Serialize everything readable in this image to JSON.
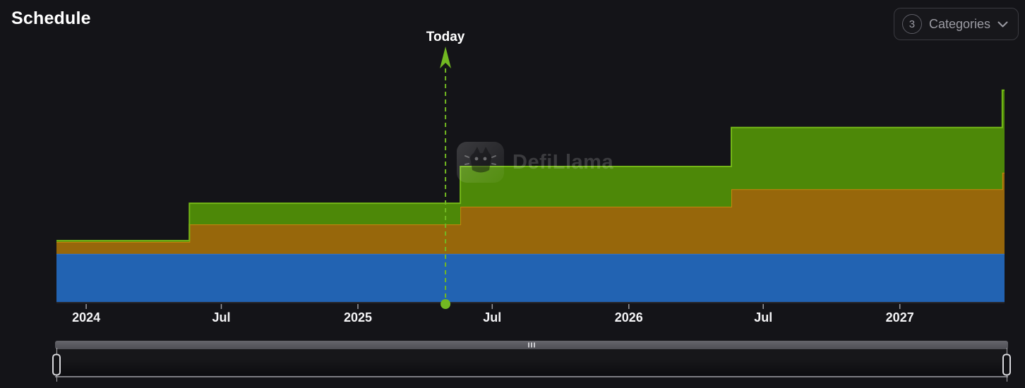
{
  "page": {
    "title": "Schedule",
    "background": "#141418"
  },
  "controls": {
    "categories": {
      "count": "3",
      "label": "Categories",
      "chevron_icon": "chevron-down"
    }
  },
  "watermark": {
    "text": "DefiLlama",
    "logo_icon": "defillama-llama"
  },
  "chart_data": {
    "type": "area",
    "subtype": "stacked-step-area",
    "title": "Schedule",
    "xlabel": "",
    "ylabel": "",
    "x_type": "time",
    "x_range": [
      "2023-11-22",
      "2027-05-22"
    ],
    "ylim": [
      0,
      100
    ],
    "y_unit": "relative (no y-axis shown)",
    "grid": false,
    "legend_position": "none",
    "x_ticks": [
      {
        "date": "2024-01-01",
        "label": "2024"
      },
      {
        "date": "2024-07-01",
        "label": "Jul"
      },
      {
        "date": "2025-01-01",
        "label": "2025"
      },
      {
        "date": "2025-07-01",
        "label": "Jul"
      },
      {
        "date": "2026-01-01",
        "label": "2026"
      },
      {
        "date": "2026-07-01",
        "label": "Jul"
      },
      {
        "date": "2027-01-01",
        "label": "2027"
      }
    ],
    "today_marker": {
      "label": "Today",
      "date": "2025-04-29"
    },
    "series": [
      {
        "name": "category-blue",
        "fill": "#2263b2",
        "stroke": "#2e72cd",
        "steps": [
          [
            "2023-11-22",
            18.4
          ]
        ]
      },
      {
        "name": "category-orange",
        "fill": "#97670b",
        "stroke": "#c8860d",
        "steps": [
          [
            "2023-11-22",
            4.6
          ],
          [
            "2024-05-19",
            11.3
          ],
          [
            "2025-05-19",
            18.1
          ],
          [
            "2026-05-19",
            24.8
          ],
          [
            "2027-05-19",
            31.1
          ]
        ]
      },
      {
        "name": "category-green",
        "fill": "#4d8808",
        "stroke": "#74b717",
        "steps": [
          [
            "2023-11-22",
            0.5
          ],
          [
            "2024-05-19",
            8.1
          ],
          [
            "2025-05-19",
            15.4
          ],
          [
            "2026-05-19",
            23.6
          ],
          [
            "2027-05-19",
            31.6
          ]
        ]
      }
    ],
    "accent": "#72b822",
    "axis_label_color": "#f5f5f7",
    "tick_color": "#9a9aa0"
  },
  "slider": {
    "left_handle": "range-start",
    "right_handle": "range-end"
  }
}
